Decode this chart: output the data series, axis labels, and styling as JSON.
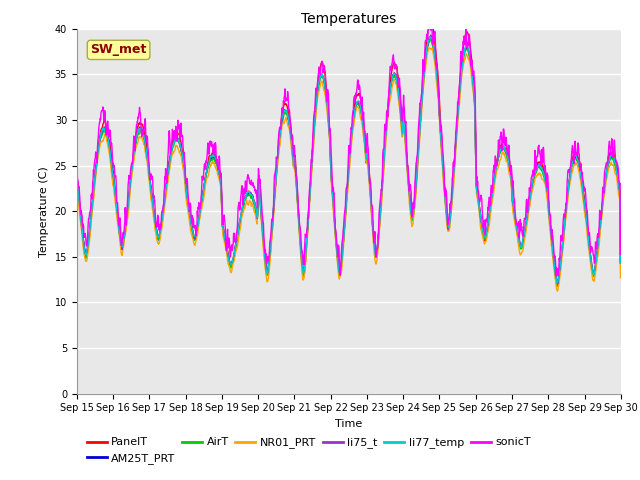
{
  "title": "Temperatures",
  "xlabel": "Time",
  "ylabel": "Temperature (C)",
  "ylim": [
    0,
    40
  ],
  "yticks": [
    0,
    5,
    10,
    15,
    20,
    25,
    30,
    35,
    40
  ],
  "annotation_text": "SW_met",
  "annotation_color": "#8B0000",
  "annotation_bg": "#FFFF99",
  "series_order": [
    "PanelT",
    "AM25T_PRT",
    "AirT",
    "NR01_PRT",
    "li75_t",
    "li77_temp",
    "sonicT"
  ],
  "series": {
    "PanelT": {
      "color": "#FF0000",
      "lw": 1.0
    },
    "AM25T_PRT": {
      "color": "#0000CC",
      "lw": 1.0
    },
    "AirT": {
      "color": "#00CC00",
      "lw": 1.0
    },
    "NR01_PRT": {
      "color": "#FFA500",
      "lw": 1.0
    },
    "li75_t": {
      "color": "#9933CC",
      "lw": 1.0
    },
    "li77_temp": {
      "color": "#00CCCC",
      "lw": 1.0
    },
    "sonicT": {
      "color": "#FF00FF",
      "lw": 1.0
    }
  },
  "n_days": 15,
  "pts_per_day": 96,
  "day_peaks": [
    29,
    29,
    28,
    26,
    22,
    31,
    35,
    32,
    35,
    39,
    38,
    27,
    25,
    26,
    26
  ],
  "day_mins": [
    15,
    16,
    17,
    17,
    14,
    13,
    13,
    13,
    15,
    19,
    18,
    17,
    16,
    12,
    13
  ],
  "background_color": "#E8E8E8",
  "grid_color": "#FFFFFF",
  "fig_facecolor": "#FFFFFF",
  "tick_fontsize": 7,
  "title_fontsize": 10,
  "label_fontsize": 8,
  "legend_fontsize": 8
}
